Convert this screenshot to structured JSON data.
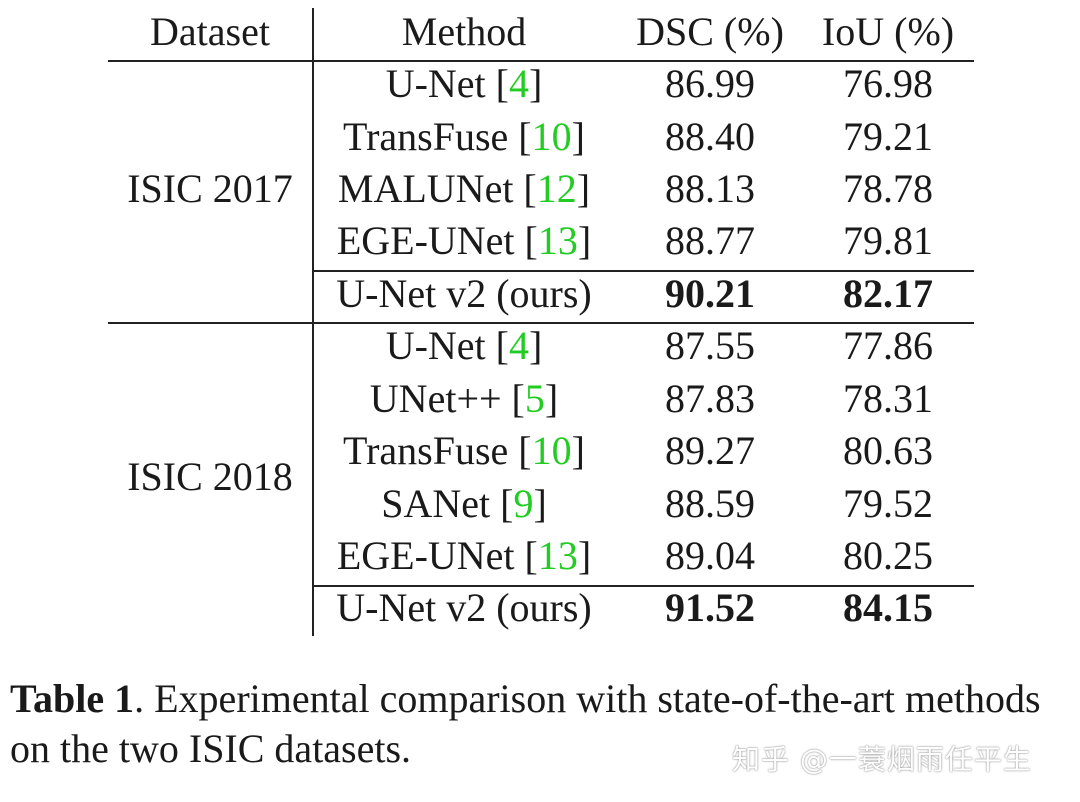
{
  "table": {
    "headers": {
      "dataset": "Dataset",
      "method": "Method",
      "dsc": "DSC (%)",
      "iou": "IoU (%)"
    },
    "groups": [
      {
        "dataset": "ISIC 2017",
        "rows": [
          {
            "method": "U-Net [",
            "cite": "4",
            "close": "]",
            "dsc": "86.99",
            "iou": "76.98"
          },
          {
            "method": "TransFuse [",
            "cite": "10",
            "close": "]",
            "dsc": "88.40",
            "iou": "79.21"
          },
          {
            "method": "MALUNet [",
            "cite": "12",
            "close": "]",
            "dsc": "88.13",
            "iou": "78.78"
          },
          {
            "method": "EGE-UNet [",
            "cite": "13",
            "close": "]",
            "dsc": "88.77",
            "iou": "79.81"
          }
        ],
        "ours": {
          "method": "U-Net v2 (ours)",
          "dsc": "90.21",
          "iou": "82.17"
        }
      },
      {
        "dataset": "ISIC 2018",
        "rows": [
          {
            "method": "U-Net [",
            "cite": "4",
            "close": "]",
            "dsc": "87.55",
            "iou": "77.86"
          },
          {
            "method": "UNet++ [",
            "cite": "5",
            "close": "]",
            "dsc": "87.83",
            "iou": "78.31"
          },
          {
            "method": "TransFuse [",
            "cite": "10",
            "close": "]",
            "dsc": "89.27",
            "iou": "80.63"
          },
          {
            "method": "SANet [",
            "cite": "9",
            "close": "]",
            "dsc": "88.59",
            "iou": "79.52"
          },
          {
            "method": "EGE-UNet [",
            "cite": "13",
            "close": "]",
            "dsc": "89.04",
            "iou": "80.25"
          }
        ],
        "ours": {
          "method": "U-Net v2 (ours)",
          "dsc": "91.52",
          "iou": "84.15"
        }
      }
    ]
  },
  "caption": {
    "label": "Table 1",
    "text": ". Experimental comparison with state-of-the-art methods on the two ISIC datasets."
  },
  "watermark": "知乎 @一蓑烟雨任平生",
  "colors": {
    "citation": "#22cc22",
    "text": "#1a1a1a"
  }
}
